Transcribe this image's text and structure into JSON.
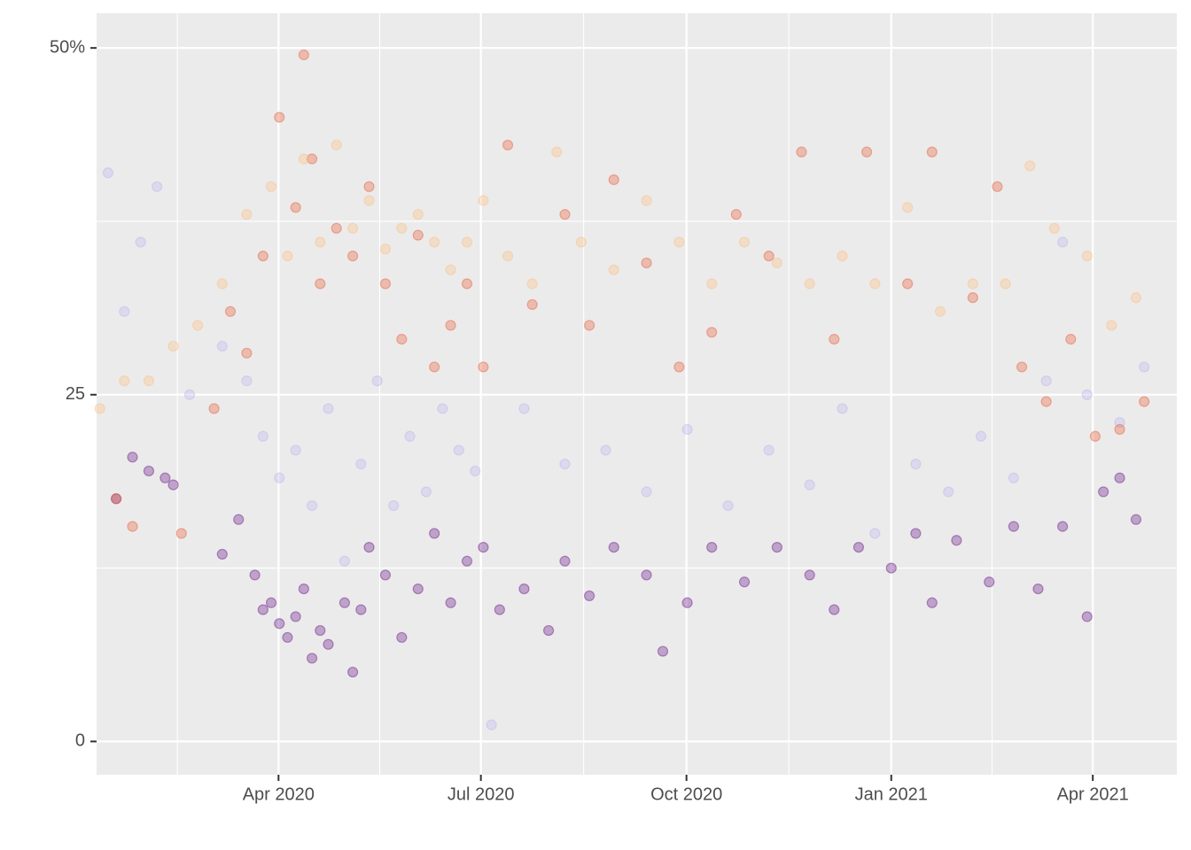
{
  "chart_data": {
    "type": "scatter",
    "xlim": [
      2020.026,
      2021.35
    ],
    "xticks": [
      {
        "value": 2020.249,
        "label": "Apr 2020"
      },
      {
        "value": 2020.497,
        "label": "Jul 2020"
      },
      {
        "value": 2020.749,
        "label": "Oct 2020"
      },
      {
        "value": 2021.0,
        "label": "Jan 2021"
      },
      {
        "value": 2021.247,
        "label": "Apr 2021"
      }
    ],
    "ylim": [
      -2.4,
      52.5
    ],
    "yticks": [
      0,
      25,
      {
        "value": 50,
        "label": "50%"
      }
    ],
    "grid": true,
    "series": [
      {
        "color": "#6a1b8a",
        "x": [
          2020.05,
          2020.07,
          2020.09,
          2020.11,
          2020.12,
          2020.18,
          2020.2,
          2020.22,
          2020.23,
          2020.24,
          2020.25,
          2020.26,
          2020.27,
          2020.28,
          2020.29,
          2020.3,
          2020.31,
          2020.33,
          2020.34,
          2020.35,
          2020.36,
          2020.38,
          2020.4,
          2020.42,
          2020.44,
          2020.46,
          2020.48,
          2020.5,
          2020.52,
          2020.55,
          2020.58,
          2020.6,
          2020.63,
          2020.66,
          2020.7,
          2020.72,
          2020.75,
          2020.78,
          2020.82,
          2020.86,
          2020.9,
          2020.93,
          2020.96,
          2021.0,
          2021.03,
          2021.05,
          2021.08,
          2021.12,
          2021.15,
          2021.18,
          2021.21,
          2021.24,
          2021.26,
          2021.28,
          2021.3
        ],
        "values": [
          17.5,
          20.5,
          19.5,
          19,
          18.5,
          13.5,
          16,
          12,
          9.5,
          10,
          8.5,
          7.5,
          9,
          11,
          6,
          8,
          7,
          10,
          5,
          9.5,
          14,
          12,
          7.5,
          11,
          15,
          10,
          13,
          14,
          9.5,
          11,
          8,
          13,
          10.5,
          14,
          12,
          6.5,
          10,
          14,
          11.5,
          14,
          12,
          9.5,
          14,
          12.5,
          15,
          10,
          14.5,
          11.5,
          15.5,
          11,
          15.5,
          9,
          18,
          19,
          16
        ]
      },
      {
        "color": "#bcb6ee",
        "x": [
          2020.04,
          2020.06,
          2020.08,
          2020.1,
          2020.14,
          2020.18,
          2020.21,
          2020.23,
          2020.25,
          2020.27,
          2020.29,
          2020.31,
          2020.33,
          2020.35,
          2020.37,
          2020.39,
          2020.41,
          2020.43,
          2020.45,
          2020.47,
          2020.49,
          2020.51,
          2020.55,
          2020.6,
          2020.65,
          2020.7,
          2020.75,
          2020.8,
          2020.85,
          2020.9,
          2020.94,
          2020.98,
          2021.03,
          2021.07,
          2021.11,
          2021.15,
          2021.19,
          2021.21,
          2021.24,
          2021.28,
          2021.31
        ],
        "values": [
          41,
          31,
          36,
          40,
          25,
          28.5,
          26,
          22,
          19,
          21,
          17,
          24,
          13,
          20,
          26,
          17,
          22,
          18,
          24,
          21,
          19.5,
          1.2,
          24,
          20,
          21,
          18,
          22.5,
          17,
          21,
          18.5,
          24,
          15,
          20,
          18,
          22,
          19,
          26,
          36,
          25,
          23,
          27
        ]
      },
      {
        "color": "#e8603c",
        "x": [
          2020.05,
          2020.07,
          2020.13,
          2020.17,
          2020.19,
          2020.21,
          2020.23,
          2020.25,
          2020.27,
          2020.28,
          2020.29,
          2020.3,
          2020.32,
          2020.34,
          2020.36,
          2020.38,
          2020.4,
          2020.42,
          2020.44,
          2020.46,
          2020.48,
          2020.5,
          2020.53,
          2020.56,
          2020.6,
          2020.63,
          2020.66,
          2020.7,
          2020.74,
          2020.78,
          2020.81,
          2020.85,
          2020.89,
          2020.93,
          2020.97,
          2021.02,
          2021.05,
          2021.1,
          2021.13,
          2021.16,
          2021.19,
          2021.22,
          2021.25,
          2021.28,
          2021.31
        ],
        "values": [
          17.5,
          15.5,
          15,
          24,
          31,
          28,
          35,
          45,
          38.5,
          49.5,
          42,
          33,
          37,
          35,
          40,
          33,
          29,
          36.5,
          27,
          30,
          33,
          27,
          43,
          31.5,
          38,
          30,
          40.5,
          34.5,
          27,
          29.5,
          38,
          35,
          42.5,
          29,
          42.5,
          33,
          42.5,
          32,
          40,
          27,
          24.5,
          29,
          22,
          22.5,
          24.5
        ]
      },
      {
        "color": "#fdbf88",
        "x": [
          2020.03,
          2020.06,
          2020.09,
          2020.12,
          2020.15,
          2020.18,
          2020.21,
          2020.24,
          2020.26,
          2020.28,
          2020.3,
          2020.32,
          2020.34,
          2020.36,
          2020.38,
          2020.4,
          2020.42,
          2020.44,
          2020.46,
          2020.48,
          2020.5,
          2020.53,
          2020.56,
          2020.59,
          2020.62,
          2020.66,
          2020.7,
          2020.74,
          2020.78,
          2020.82,
          2020.86,
          2020.9,
          2020.94,
          2020.98,
          2021.02,
          2021.06,
          2021.1,
          2021.14,
          2021.17,
          2021.2,
          2021.24,
          2021.27,
          2021.3
        ],
        "values": [
          24,
          26,
          26,
          28.5,
          30,
          33,
          38,
          40,
          35,
          42,
          36,
          43,
          37,
          39,
          35.5,
          37,
          38,
          36,
          34,
          36,
          39,
          35,
          33,
          42.5,
          36,
          34,
          39,
          36,
          33,
          36,
          34.5,
          33,
          35,
          33,
          38.5,
          31,
          33,
          33,
          41.5,
          37,
          35,
          30,
          32
        ]
      }
    ]
  }
}
